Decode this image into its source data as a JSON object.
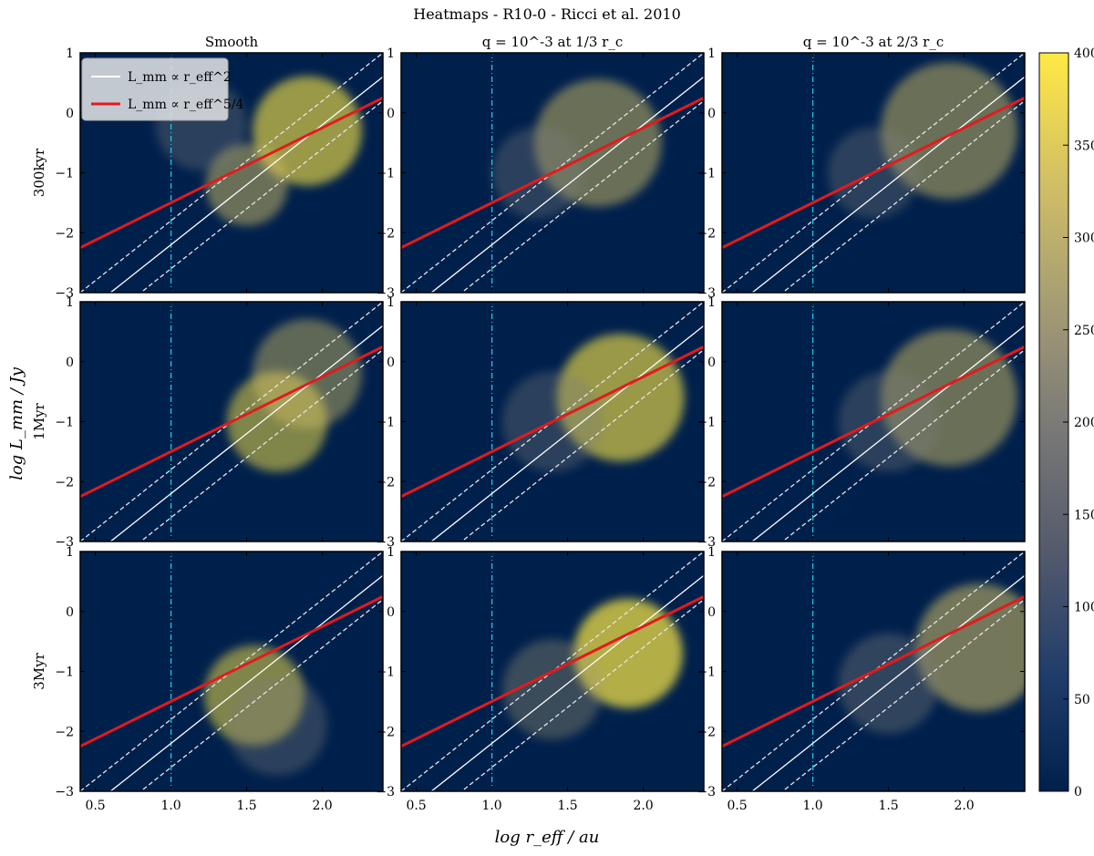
{
  "figure": {
    "title": "Heatmaps - R10-0 - Ricci et al. 2010",
    "xlabel": "log r_eff / au",
    "ylabel": "log L_mm / Jy"
  },
  "legend": {
    "items": [
      {
        "label": "L_mm ∝ r_eff^2",
        "color": "#ffffff"
      },
      {
        "label": "L_mm ∝ r_eff^5/4",
        "color": "#e41a1c"
      }
    ]
  },
  "colorbar": {
    "min": 0,
    "max": 400,
    "ticks": [
      "0",
      "50",
      "100",
      "150",
      "200",
      "250",
      "300",
      "350",
      "400"
    ],
    "colormap": "cividis",
    "colors": [
      "#00204c",
      "#213d6b",
      "#555b6c",
      "#7b7a77",
      "#a59c74",
      "#d3c064",
      "#ffe945"
    ]
  },
  "chart_data": {
    "type": "heatmap",
    "subtype": "hexbin grid 3x3",
    "columns": [
      "Smooth",
      "q = 10^-3 at 1/3 r_c",
      "q = 10^-3 at 2/3 r_c"
    ],
    "rows": [
      "300kyr",
      "1Myr",
      "3Myr"
    ],
    "xlim": [
      0.4,
      2.4
    ],
    "ylim": [
      -3,
      1
    ],
    "xticks": [
      "0.5",
      "1.0",
      "1.5",
      "2.0"
    ],
    "yticks": [
      "−3",
      "−2",
      "−1",
      "0",
      "1"
    ],
    "vertical_line_x": 1.0,
    "reference_lines": [
      {
        "label": "L_mm ∝ r_eff^2",
        "slope": 2,
        "intercept": -4.2,
        "style": "solid",
        "color": "#ffffff"
      },
      {
        "label": "",
        "slope": 2,
        "intercept": -3.8,
        "style": "dashed",
        "color": "#e6e6e6"
      },
      {
        "label": "",
        "slope": 2,
        "intercept": -4.6,
        "style": "dashed",
        "color": "#e6e6e6"
      },
      {
        "label": "L_mm ∝ r_eff^5/4",
        "slope": 1.25,
        "intercept": -2.75,
        "style": "solid",
        "color": "#e41a1c"
      }
    ],
    "background_color": "#00204c"
  }
}
